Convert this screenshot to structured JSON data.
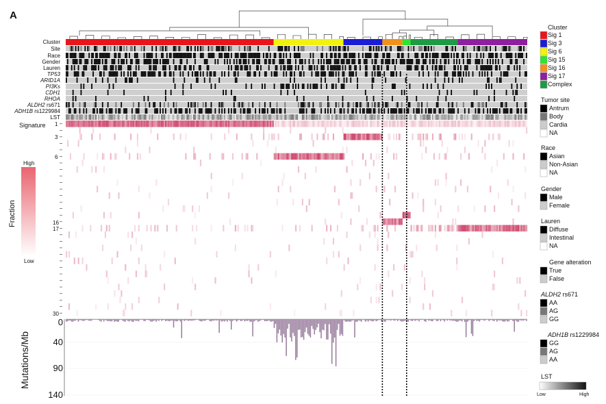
{
  "panel_label": "A",
  "row_labels": {
    "cluster": "Cluster",
    "site": "Site",
    "race": "Race",
    "gender": "Gender",
    "lauren": "Lauren",
    "tp53": "TP53",
    "arid1a": "ARID1A",
    "pi3ks": "PI3Ks",
    "cdh1": "CDH1",
    "rhoa": "RHOA",
    "aldh2_gene": "ALDH2",
    "aldh2_snp": "rs671",
    "adh1b_gene": "ADH1B",
    "adh1b_snp": "rs1229984",
    "lst": "LST"
  },
  "signature_label": "Signature",
  "signature_numbers": [
    "1",
    "3",
    "6",
    "16",
    "17",
    "30"
  ],
  "fraction": {
    "title": "Fraction",
    "high": "High",
    "low": "Low"
  },
  "mutation_axis": {
    "title": "Mutations/Mb",
    "ticks": [
      "0",
      "40",
      "90",
      "140"
    ]
  },
  "legend": {
    "cluster": {
      "title": "Cluster",
      "items": [
        {
          "label": "Sig 1",
          "color": "#e8151b"
        },
        {
          "label": "Sig 3",
          "color": "#1c1cd6"
        },
        {
          "label": "Sig 6",
          "color": "#f2f20e"
        },
        {
          "label": "Sig 15",
          "color": "#2ee52e"
        },
        {
          "label": "Sig 16",
          "color": "#f2901a"
        },
        {
          "label": "Sig 17",
          "color": "#8e1f9e"
        },
        {
          "label": "Complex",
          "color": "#1e9a44"
        }
      ]
    },
    "tumor_site": {
      "title": "Tumor site",
      "items": [
        {
          "label": "Antrum",
          "color": "#000000"
        },
        {
          "label": "Body",
          "color": "#777777"
        },
        {
          "label": "Cardia",
          "color": "#cccccc"
        },
        {
          "label": "NA",
          "color": "#ffffff"
        }
      ]
    },
    "race": {
      "title": "Race",
      "items": [
        {
          "label": "Asian",
          "color": "#000000"
        },
        {
          "label": "Non-Asian",
          "color": "#cccccc"
        },
        {
          "label": "NA",
          "color": "#ffffff"
        }
      ]
    },
    "gender": {
      "title": "Gender",
      "items": [
        {
          "label": "Male",
          "color": "#000000"
        },
        {
          "label": "Female",
          "color": "#cccccc"
        }
      ]
    },
    "lauren": {
      "title": "Lauren",
      "items": [
        {
          "label": "Diffuse",
          "color": "#000000"
        },
        {
          "label": "Intestinal",
          "color": "#cccccc"
        },
        {
          "label": "NA",
          "color": "#ffffff"
        }
      ]
    },
    "gene_alteration": {
      "title": "Gene alteration",
      "items": [
        {
          "label": "True",
          "color": "#000000"
        },
        {
          "label": "False",
          "color": "#cccccc"
        }
      ]
    },
    "aldh2": {
      "title_gene": "ALDH2",
      "title_snp": "rs671",
      "items": [
        {
          "label": "AA",
          "color": "#000000"
        },
        {
          "label": "AG",
          "color": "#777777"
        },
        {
          "label": "GG",
          "color": "#cccccc"
        }
      ]
    },
    "adh1b": {
      "title_gene": "ADH1B",
      "title_snp": "rs1229984",
      "items": [
        {
          "label": "GG",
          "color": "#000000"
        },
        {
          "label": "AG",
          "color": "#777777"
        },
        {
          "label": "AA",
          "color": "#cccccc"
        }
      ]
    },
    "lst": {
      "title": "LST",
      "low": "Low",
      "high": "High"
    }
  },
  "cluster_order": [
    {
      "name": "Sig 1",
      "color": "#e8151b",
      "count": 155
    },
    {
      "name": "Sig 6",
      "color": "#f2f20e",
      "count": 52
    },
    {
      "name": "Sig 3",
      "color": "#1c1cd6",
      "count": 29
    },
    {
      "name": "Sig 16",
      "color": "#f2901a",
      "count": 15
    },
    {
      "name": "Sig 15",
      "color": "#2ee52e",
      "count": 6
    },
    {
      "name": "Complex",
      "color": "#1e9a44",
      "count": 35
    },
    {
      "name": "Sig 17",
      "color": "#8e1f9e",
      "count": 52
    }
  ],
  "colors": {
    "heat": "#c8305a",
    "mutation_bar": "#9a7f9e"
  }
}
